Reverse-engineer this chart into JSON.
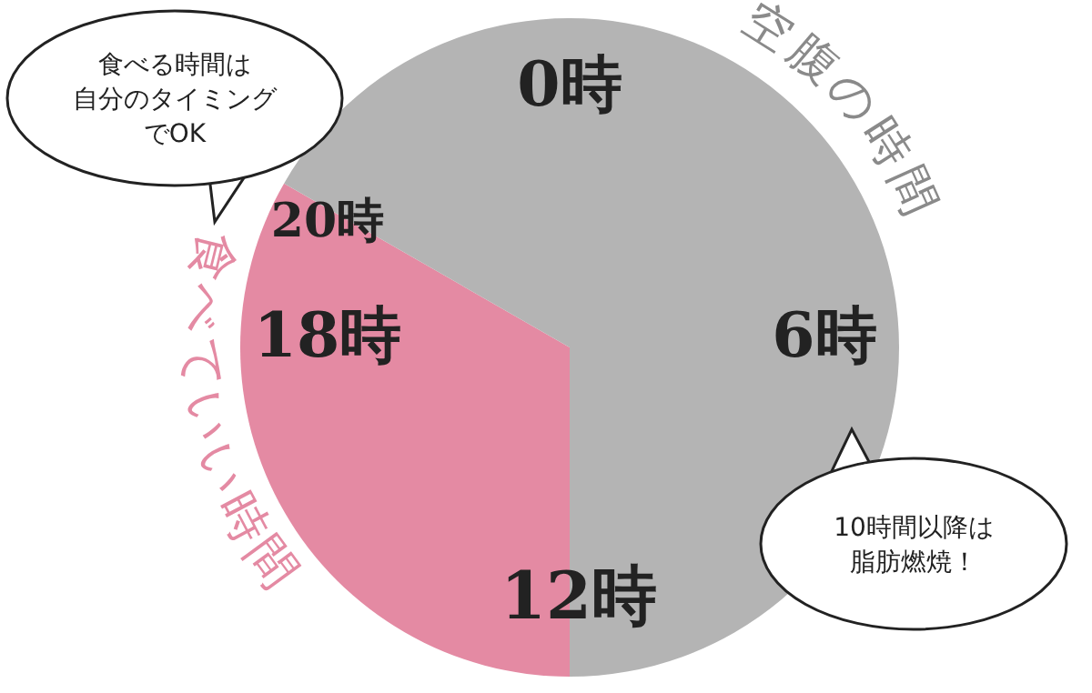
{
  "chart_data": {
    "type": "pie",
    "categories": [
      "食べていい時間",
      "空腹の時間"
    ],
    "values": [
      33.3,
      66.7
    ],
    "colors": [
      "#e48aa3",
      "#b4b4b4"
    ],
    "annotations": [
      "0時",
      "6時",
      "12時",
      "18時",
      "20時",
      "食べる時間は自分のタイミングでOK",
      "10時間以降は脂肪燃焼！"
    ]
  }
}
